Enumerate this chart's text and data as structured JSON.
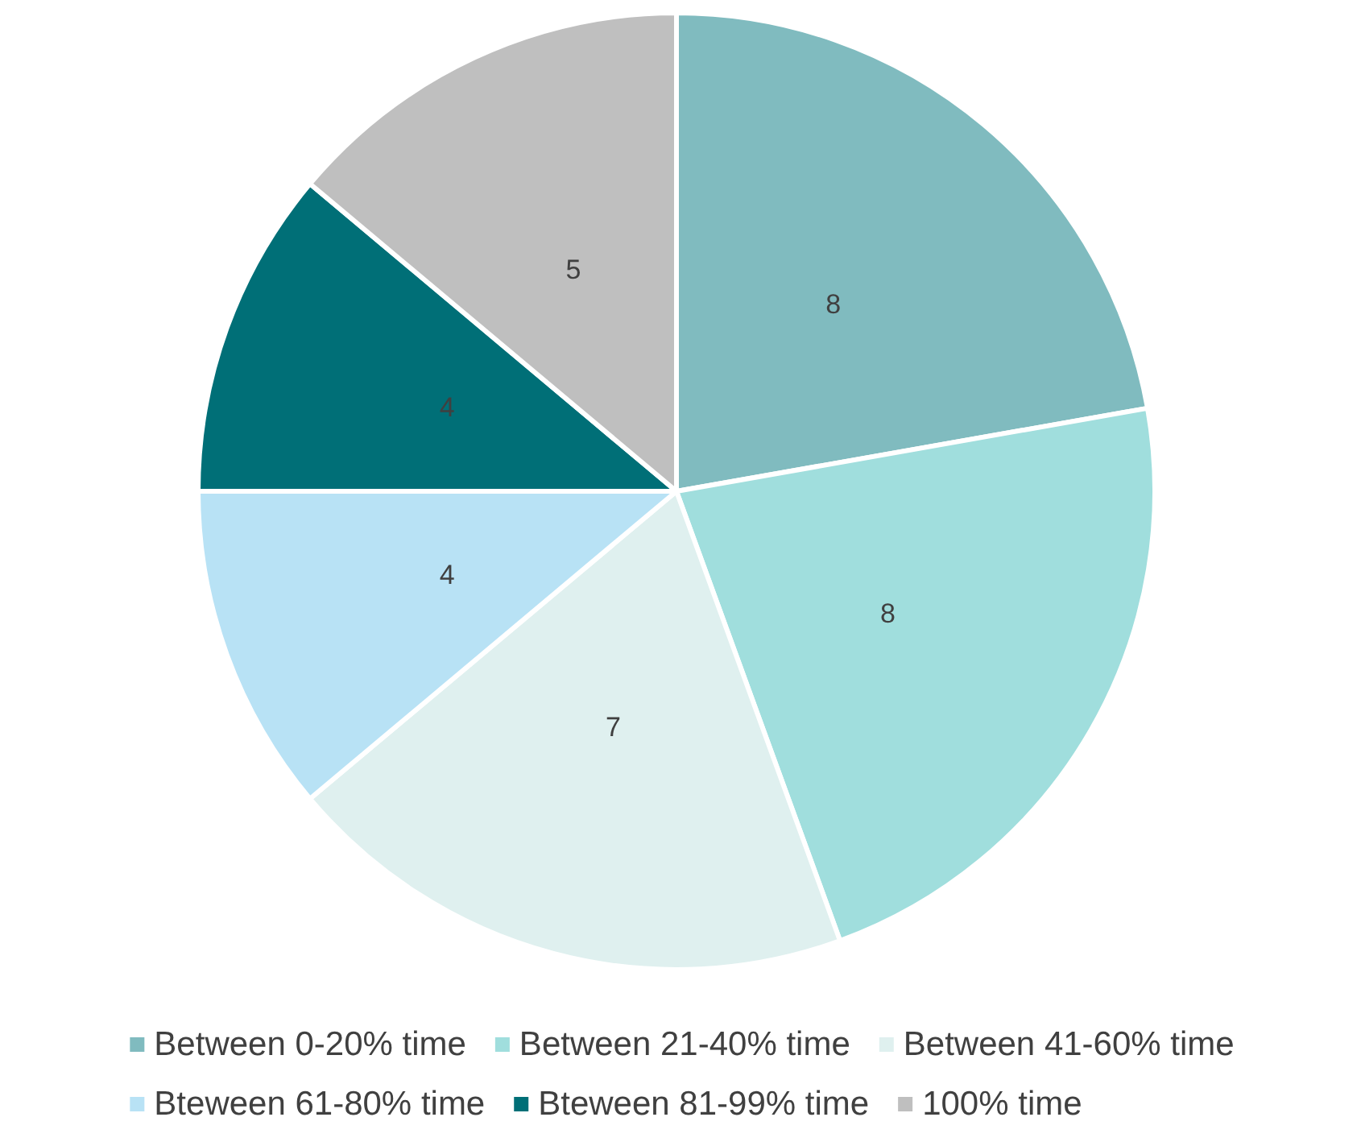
{
  "chart_data": {
    "type": "pie",
    "categories": [
      "Between 0-20% time",
      "Between 21-40% time",
      "Between 41-60% time",
      "Bteween 61-80% time",
      "Bteween 81-99% time",
      "100% time"
    ],
    "values": [
      8,
      8,
      7,
      4,
      4,
      5
    ],
    "colors": [
      "#80bbbf",
      "#a0dedd",
      "#dff0ef",
      "#b8e2f5",
      "#006f77",
      "#bfbfbf"
    ],
    "data_labels": true,
    "legend": "bottom"
  }
}
